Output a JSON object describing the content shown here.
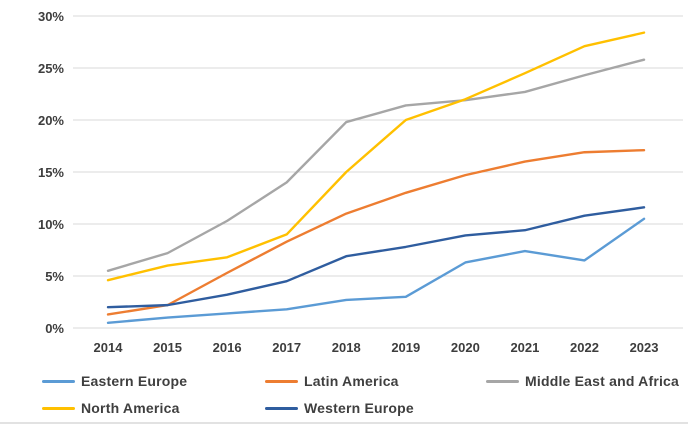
{
  "chart_data": {
    "type": "line",
    "title": "",
    "xlabel": "",
    "ylabel": "",
    "x_categories": [
      "2014",
      "2015",
      "2016",
      "2017",
      "2018",
      "2019",
      "2020",
      "2021",
      "2022",
      "2023"
    ],
    "y_ticks": [
      "0%",
      "5%",
      "10%",
      "15%",
      "20%",
      "25%",
      "30%"
    ],
    "ylim": [
      0,
      30
    ],
    "grid": "horizontal-only",
    "gridline_color": "#d9d9d9",
    "tick_text_color": "#3d3d3d",
    "legend_position": "bottom",
    "series": [
      {
        "name": "Eastern Europe",
        "color": "#5B9BD5",
        "values": [
          0.5,
          1.0,
          1.4,
          1.8,
          2.7,
          3.0,
          6.3,
          7.4,
          6.5,
          10.5
        ]
      },
      {
        "name": "Latin America",
        "color": "#ED7D31",
        "values": [
          1.3,
          2.2,
          5.3,
          8.3,
          11.0,
          13.0,
          14.7,
          16.0,
          16.9,
          17.1
        ]
      },
      {
        "name": "Middle East and Africa",
        "color": "#A6A6A6",
        "values": [
          5.5,
          7.2,
          10.3,
          14.0,
          19.8,
          21.4,
          21.9,
          22.7,
          24.3,
          25.8
        ]
      },
      {
        "name": "North America",
        "color": "#FFC000",
        "values": [
          4.6,
          6.0,
          6.8,
          9.0,
          15.0,
          20.0,
          22.0,
          24.5,
          27.1,
          28.4
        ]
      },
      {
        "name": "Western Europe",
        "color": "#2F5D9F",
        "values": [
          2.0,
          2.2,
          3.2,
          4.5,
          6.9,
          7.8,
          8.9,
          9.4,
          10.8,
          11.6
        ]
      }
    ]
  }
}
